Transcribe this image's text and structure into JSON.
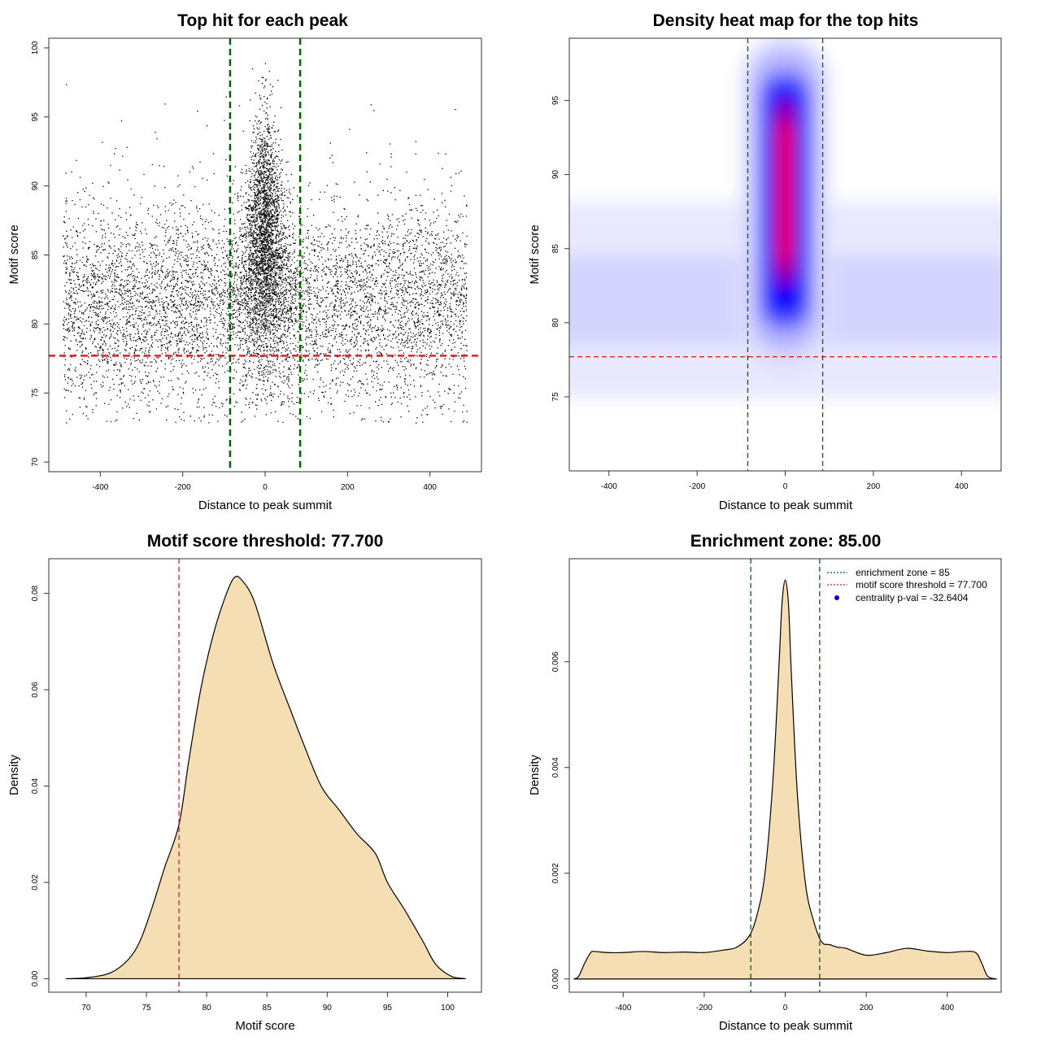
{
  "chart_data": [
    {
      "id": "scatter",
      "type": "scatter",
      "title": "Top hit for each peak",
      "xlabel": "Distance to peak summit",
      "ylabel": "Motif score",
      "xlim": [
        -525,
        525
      ],
      "ylim": [
        69.3,
        100.7
      ],
      "xticks": [
        -400,
        -200,
        0,
        200,
        400
      ],
      "yticks": [
        70,
        75,
        80,
        85,
        90,
        95,
        100
      ],
      "threshold_line": {
        "axis": "y",
        "value": 77.7,
        "color": "#dd2222",
        "style": "dashed"
      },
      "zone_lines": {
        "axis": "x",
        "values": [
          -85,
          85
        ],
        "color": "#006400",
        "style": "dashed"
      },
      "point_sample": {
        "background": {
          "count": 6500,
          "x_range": [
            -490,
            490
          ],
          "y_mean": 81.5,
          "y_sd": 3.4,
          "y_min": 72.8
        },
        "central": {
          "count": 2800,
          "x_mean": 0,
          "x_sd": 22,
          "y_mean": 86,
          "y_sd": 4.2,
          "y_max": 99.4
        }
      }
    },
    {
      "id": "heatmap",
      "type": "heatmap",
      "title": "Density heat map for the top hits",
      "xlabel": "Distance to peak summit",
      "ylabel": "Motif score",
      "xlim": [
        -490,
        490
      ],
      "ylim": [
        70,
        99.2
      ],
      "xticks": [
        -400,
        -200,
        0,
        200,
        400
      ],
      "yticks": [
        75,
        80,
        85,
        90,
        95
      ],
      "colorscale": [
        "#ffffff",
        "#0000ff",
        "#ff0000"
      ],
      "density_peak": {
        "x": 0,
        "y": 88,
        "x_spread": 20,
        "y_spread": 5
      },
      "background_band": {
        "y_center": 81.5,
        "y_spread": 3
      },
      "threshold_line": {
        "axis": "y",
        "value": 77.7,
        "color": "#dd2222",
        "style": "dashed"
      },
      "zone_lines": {
        "axis": "x",
        "values": [
          -85,
          85
        ],
        "color": "#006400",
        "style": "dashed"
      }
    },
    {
      "id": "score_density",
      "type": "area",
      "title": "Motif score threshold: 77.700",
      "xlabel": "Motif score",
      "ylabel": "Density",
      "xlim": [
        66.9,
        102.8
      ],
      "ylim": [
        -0.0028,
        0.0872
      ],
      "xticks": [
        70,
        75,
        80,
        85,
        90,
        95,
        100
      ],
      "yticks": [
        0.0,
        0.02,
        0.04,
        0.06,
        0.08
      ],
      "ytick_labels": [
        "0.00",
        "0.02",
        "0.04",
        "0.06",
        "0.08"
      ],
      "fill": "#f5deb3",
      "x": [
        68.3,
        70,
        72,
        73.5,
        74.5,
        75.5,
        76.5,
        77.7,
        78.5,
        79.5,
        80.5,
        81.5,
        82.3,
        83,
        84,
        85.5,
        87,
        88,
        89.5,
        91,
        92.5,
        94,
        95,
        96.5,
        98,
        99,
        100.3,
        101.5
      ],
      "y": [
        0,
        0.0002,
        0.0012,
        0.004,
        0.008,
        0.015,
        0.023,
        0.032,
        0.045,
        0.06,
        0.071,
        0.079,
        0.0833,
        0.0825,
        0.078,
        0.0655,
        0.0555,
        0.049,
        0.04,
        0.035,
        0.03,
        0.026,
        0.02,
        0.014,
        0.0075,
        0.003,
        0.0005,
        0
      ],
      "threshold_line": {
        "axis": "x",
        "value": 77.7,
        "color": "#dd2222",
        "style": "dashed"
      }
    },
    {
      "id": "distance_density",
      "type": "area",
      "title": "Enrichment zone: 85.00",
      "xlabel": "Distance to peak summit",
      "ylabel": "Density",
      "xlim": [
        -533,
        533
      ],
      "ylim": [
        -0.00025,
        0.00795
      ],
      "xticks": [
        -400,
        -200,
        0,
        200,
        400
      ],
      "yticks": [
        0.0,
        0.002,
        0.004,
        0.006
      ],
      "ytick_labels": [
        "0.000",
        "0.002",
        "0.004",
        "0.006"
      ],
      "fill": "#f5deb3",
      "x": [
        -522,
        -510,
        -495,
        -480,
        -470,
        -440,
        -400,
        -350,
        -300,
        -250,
        -200,
        -150,
        -120,
        -90,
        -70,
        -50,
        -30,
        -15,
        -8,
        0,
        8,
        15,
        30,
        50,
        70,
        90,
        110,
        130,
        150,
        200,
        250,
        300,
        350,
        400,
        440,
        470,
        485,
        500,
        522
      ],
      "y": [
        0,
        5e-05,
        0.0003,
        0.0005,
        0.00052,
        0.0005,
        0.0005,
        0.00052,
        0.0005,
        0.00051,
        0.0005,
        0.00055,
        0.0006,
        0.0008,
        0.0012,
        0.002,
        0.0038,
        0.006,
        0.0071,
        0.00755,
        0.0071,
        0.0058,
        0.0035,
        0.0018,
        0.0011,
        0.0007,
        0.00065,
        0.0006,
        0.00058,
        0.00045,
        0.0005,
        0.00058,
        0.00053,
        0.0005,
        0.00052,
        0.0005,
        0.0003,
        5e-05,
        0
      ],
      "zone_lines": {
        "axis": "x",
        "values": [
          -85,
          85
        ],
        "color": "#006400",
        "style": "dashed"
      },
      "legend": {
        "position": "top-right",
        "entries": [
          {
            "label": "enrichment zone = 85",
            "kind": "line",
            "color": "#006400"
          },
          {
            "label": "motif score threshold = 77.700",
            "kind": "line",
            "color": "#dd2222"
          },
          {
            "label": "centrality p-val = -32.6404",
            "kind": "point",
            "color": "#0000cc"
          }
        ]
      }
    }
  ]
}
